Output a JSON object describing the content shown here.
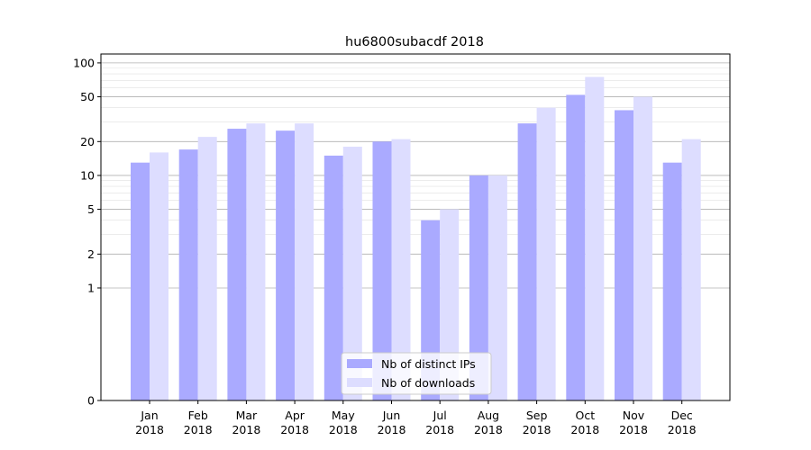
{
  "chart_data": {
    "type": "bar",
    "title": "hu6800subacdf 2018",
    "xlabel": "",
    "ylabel": "",
    "yscale": "symlog",
    "ylim": [
      0,
      120
    ],
    "ytick_values": [
      0,
      1,
      2,
      5,
      10,
      20,
      50,
      100
    ],
    "ytick_labels": [
      "0",
      "1",
      "2",
      "5",
      "10",
      "20",
      "50",
      "100"
    ],
    "categories": [
      {
        "month": "Jan",
        "year": "2018"
      },
      {
        "month": "Feb",
        "year": "2018"
      },
      {
        "month": "Mar",
        "year": "2018"
      },
      {
        "month": "Apr",
        "year": "2018"
      },
      {
        "month": "May",
        "year": "2018"
      },
      {
        "month": "Jun",
        "year": "2018"
      },
      {
        "month": "Jul",
        "year": "2018"
      },
      {
        "month": "Aug",
        "year": "2018"
      },
      {
        "month": "Sep",
        "year": "2018"
      },
      {
        "month": "Oct",
        "year": "2018"
      },
      {
        "month": "Nov",
        "year": "2018"
      },
      {
        "month": "Dec",
        "year": "2018"
      }
    ],
    "series": [
      {
        "name": "Nb of distinct IPs",
        "color": "#aaaaff",
        "values": [
          13,
          17,
          26,
          25,
          15,
          20,
          4,
          10,
          29,
          52,
          38,
          13
        ]
      },
      {
        "name": "Nb of downloads",
        "color": "#ddddff",
        "values": [
          16,
          22,
          29,
          29,
          18,
          21,
          5,
          10,
          40,
          75,
          50,
          21
        ]
      }
    ],
    "grid": true,
    "legend_position": "lower-center"
  }
}
